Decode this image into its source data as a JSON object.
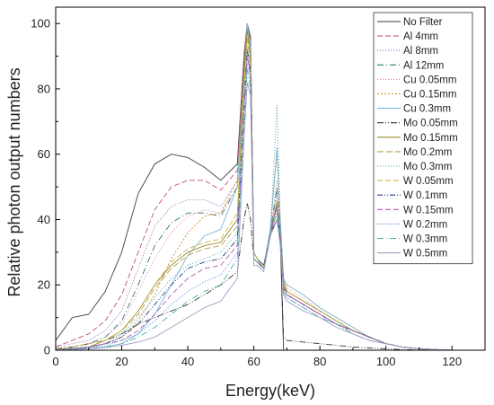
{
  "chart_data": {
    "type": "line",
    "xlabel": "Energy(keV)",
    "ylabel": "Relative photon output numbers",
    "xlim": [
      0,
      130
    ],
    "ylim": [
      0,
      105
    ],
    "xticks": [
      "0",
      "20",
      "40",
      "60",
      "80",
      "100",
      "120"
    ],
    "yticks": [
      "0",
      "20",
      "40",
      "60",
      "80",
      "100"
    ],
    "xtick_values": [
      0,
      20,
      40,
      60,
      80,
      100,
      120
    ],
    "ytick_values": [
      0,
      20,
      40,
      60,
      80,
      100
    ],
    "grid": false,
    "legend_position": "top-right",
    "x": [
      0,
      5,
      10,
      15,
      20,
      25,
      30,
      35,
      40,
      45,
      50,
      55,
      57,
      58,
      59,
      60,
      61,
      63,
      65,
      67,
      68,
      69,
      70,
      75,
      80,
      85,
      90,
      95,
      100,
      105,
      110,
      115,
      120,
      125,
      130
    ],
    "series": [
      {
        "name": "No Filter",
        "color": "#3b3b3b",
        "dash": "",
        "values": [
          3,
          10,
          11,
          18,
          30,
          48,
          57,
          60,
          59,
          56,
          52,
          57,
          90,
          100,
          96,
          30,
          28,
          26,
          36,
          40,
          35,
          0,
          0,
          0,
          0,
          0,
          0,
          0,
          0,
          0,
          0,
          0,
          0,
          0,
          0
        ]
      },
      {
        "name": "Al 4mm",
        "color": "#c0506a",
        "dash": "6,3",
        "values": [
          1,
          3,
          5,
          9,
          17,
          30,
          43,
          50,
          52,
          52,
          49,
          55,
          90,
          100,
          95,
          30,
          28,
          25,
          35,
          45,
          35,
          20,
          17,
          14,
          11,
          8,
          6,
          4,
          2,
          1,
          0.5,
          0.2,
          0,
          0,
          0
        ]
      },
      {
        "name": "Al 8mm",
        "color": "#7a5cb3",
        "dash": "1,2",
        "values": [
          1,
          2,
          3,
          6,
          12,
          25,
          38,
          44,
          46,
          46,
          44,
          52,
          88,
          100,
          95,
          30,
          28,
          25,
          36,
          48,
          36,
          21,
          18,
          15,
          12,
          9,
          6,
          4,
          2,
          1,
          0.5,
          0.2,
          0,
          0,
          0
        ]
      },
      {
        "name": "Al 12mm",
        "color": "#2a7a70",
        "dash": "7,3,1,3",
        "values": [
          0.5,
          1,
          2,
          4,
          9,
          20,
          32,
          39,
          42,
          42,
          41,
          50,
          87,
          100,
          94,
          30,
          28,
          25,
          36,
          50,
          37,
          21,
          18,
          15,
          12,
          9,
          6,
          4,
          2,
          1,
          0.5,
          0.2,
          0,
          0,
          0
        ]
      },
      {
        "name": "Cu 0.05mm",
        "color": "#e07a9a",
        "dash": "1,2",
        "values": [
          0.5,
          1,
          2,
          4,
          8,
          18,
          28,
          36,
          41,
          43,
          42,
          50,
          86,
          100,
          94,
          30,
          28,
          25,
          36,
          52,
          38,
          22,
          19,
          16,
          12,
          9,
          6,
          4,
          2,
          1,
          0.5,
          0.2,
          0,
          0,
          0
        ]
      },
      {
        "name": "Cu 0.15mm",
        "color": "#d98c1a",
        "dash": "2,2",
        "values": [
          0.3,
          0.5,
          1,
          2,
          4,
          9,
          17,
          28,
          36,
          41,
          42,
          52,
          84,
          100,
          92,
          30,
          28,
          25,
          37,
          60,
          40,
          22,
          20,
          17,
          13,
          10,
          7,
          4,
          2,
          1,
          0.5,
          0.2,
          0,
          0,
          0
        ]
      },
      {
        "name": "Cu 0.3mm",
        "color": "#7ab8d8",
        "dash": "",
        "values": [
          0.2,
          0.3,
          0.5,
          1,
          2,
          5,
          11,
          20,
          29,
          35,
          37,
          50,
          82,
          100,
          92,
          30,
          28,
          25,
          37,
          62,
          40,
          22,
          20,
          17,
          13,
          10,
          7,
          4,
          2,
          1,
          0.5,
          0.2,
          0,
          0,
          0
        ]
      },
      {
        "name": "Mo 0.05mm",
        "color": "#333333",
        "dash": "7,2,1,2,1,2",
        "values": [
          0.5,
          1,
          2,
          3,
          5,
          8,
          10,
          12,
          14,
          17,
          20,
          24,
          40,
          45,
          40,
          28,
          27,
          25,
          35,
          40,
          34,
          4,
          3,
          2.5,
          2,
          1.5,
          1,
          0.7,
          0.4,
          0.2,
          0.1,
          0,
          0,
          0,
          0
        ]
      },
      {
        "name": "Mo 0.15mm",
        "color": "#9a8a2a",
        "dash": "",
        "values": [
          0.3,
          0.5,
          1,
          3,
          6,
          12,
          20,
          26,
          30,
          32,
          33,
          40,
          85,
          98,
          90,
          28,
          27,
          25,
          36,
          45,
          36,
          21,
          18,
          15,
          12,
          9,
          6,
          4,
          2,
          1,
          0.5,
          0.2,
          0,
          0,
          0
        ]
      },
      {
        "name": "Mo 0.2mm",
        "color": "#b9a050",
        "dash": "7,3",
        "values": [
          0.3,
          0.5,
          1,
          3,
          6,
          11,
          19,
          25,
          29,
          31,
          32,
          38,
          82,
          96,
          88,
          28,
          27,
          25,
          36,
          44,
          36,
          20,
          18,
          15,
          12,
          9,
          6,
          4,
          2,
          1,
          0.5,
          0.2,
          0,
          0,
          0
        ]
      },
      {
        "name": "Mo 0.3mm",
        "color": "#4aa0b0",
        "dash": "1,2",
        "values": [
          0.2,
          0.4,
          1,
          2,
          5,
          10,
          16,
          22,
          26,
          28,
          30,
          36,
          78,
          93,
          86,
          28,
          27,
          25,
          36,
          75,
          40,
          20,
          18,
          15,
          12,
          9,
          6,
          4,
          2,
          1,
          0.5,
          0.2,
          0,
          0,
          0
        ]
      },
      {
        "name": "W 0.05mm",
        "color": "#c8b640",
        "dash": "6,3",
        "values": [
          0.5,
          1,
          2,
          3,
          6,
          12,
          20,
          27,
          31,
          33,
          34,
          42,
          80,
          95,
          88,
          30,
          28,
          25,
          36,
          46,
          36,
          21,
          18,
          15,
          12,
          9,
          6,
          4,
          2,
          1,
          0.5,
          0.2,
          0,
          0,
          0
        ]
      },
      {
        "name": "W 0.1mm",
        "color": "#1a3a8a",
        "dash": "6,2,1,2,1,2",
        "values": [
          0.3,
          0.5,
          1,
          2,
          4,
          8,
          14,
          20,
          25,
          27,
          28,
          34,
          75,
          92,
          85,
          28,
          27,
          25,
          36,
          44,
          35,
          19,
          17,
          14,
          11,
          8,
          6,
          4,
          2,
          1,
          0.5,
          0.2,
          0,
          0,
          0
        ]
      },
      {
        "name": "W 0.15mm",
        "color": "#b05ab0",
        "dash": "6,3",
        "values": [
          0.3,
          0.5,
          1,
          2,
          3,
          6,
          11,
          17,
          22,
          25,
          26,
          32,
          72,
          90,
          84,
          28,
          27,
          25,
          36,
          44,
          35,
          19,
          17,
          14,
          11,
          8,
          6,
          4,
          2,
          1,
          0.5,
          0.2,
          0,
          0,
          0
        ]
      },
      {
        "name": "W 0.2mm",
        "color": "#3a7ad0",
        "dash": "1,2",
        "values": [
          0.2,
          0.4,
          0.8,
          1.5,
          3,
          5,
          9,
          14,
          18,
          21,
          23,
          30,
          70,
          88,
          82,
          28,
          27,
          25,
          36,
          42,
          34,
          18,
          16,
          13,
          10,
          8,
          5,
          3,
          2,
          1,
          0.5,
          0.2,
          0,
          0,
          0
        ]
      },
      {
        "name": "W 0.3mm",
        "color": "#4ab0a0",
        "dash": "7,3,1,3",
        "values": [
          0.2,
          0.3,
          0.6,
          1,
          2,
          4,
          7,
          11,
          15,
          18,
          20,
          28,
          68,
          86,
          80,
          28,
          27,
          25,
          36,
          42,
          34,
          18,
          16,
          13,
          10,
          8,
          5,
          3,
          2,
          1,
          0.5,
          0.2,
          0,
          0,
          0
        ]
      },
      {
        "name": "W 0.5mm",
        "color": "#a0a0c8",
        "dash": "",
        "values": [
          0.1,
          0.2,
          0.4,
          0.8,
          1.5,
          2.5,
          4,
          7,
          10,
          13,
          15,
          22,
          64,
          82,
          78,
          26,
          26,
          24,
          35,
          40,
          32,
          17,
          15,
          12,
          10,
          7,
          5,
          3,
          2,
          1,
          0.5,
          0.2,
          0,
          0,
          0
        ]
      }
    ]
  }
}
